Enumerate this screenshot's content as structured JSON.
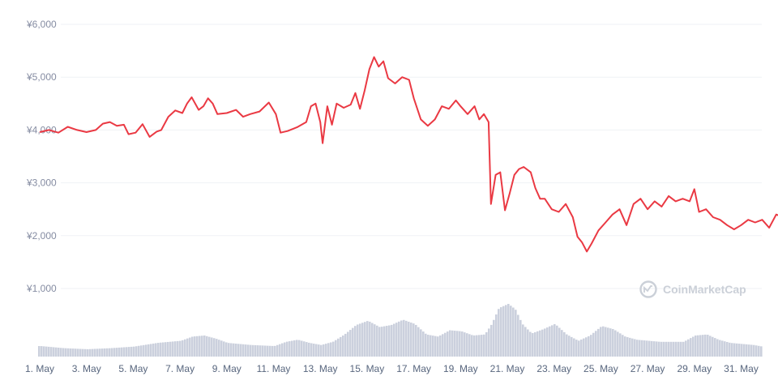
{
  "chart_data": {
    "type": "line",
    "title": "",
    "xlabel": "",
    "ylabel": "",
    "x_tick_labels": [
      "1. May",
      "3. May",
      "5. May",
      "7. May",
      "9. May",
      "11. May",
      "13. May",
      "15. May",
      "17. May",
      "19. May",
      "21. May",
      "23. May",
      "25. May",
      "27. May",
      "29. May",
      "31. May"
    ],
    "y_tick_labels": [
      "¥1,000",
      "¥2,000",
      "¥3,000",
      "¥4,000",
      "¥5,000",
      "¥6,000"
    ],
    "y_ticks": [
      1000,
      2000,
      3000,
      4000,
      5000,
      6000
    ],
    "ylim": [
      0,
      6000
    ],
    "xlim": [
      1,
      32.8
    ],
    "grid": true,
    "watermark": "CoinMarketCap",
    "colors": {
      "price_line": "#ea3943",
      "volume_bars": "#cbd0dd",
      "grid": "#eff2f5"
    },
    "series": [
      {
        "values": [
          [
            1.0,
            3960
          ],
          [
            1.4,
            4000
          ],
          [
            1.8,
            3950
          ],
          [
            2.2,
            4060
          ],
          [
            2.6,
            4000
          ],
          [
            3.0,
            3960
          ],
          [
            3.4,
            4000
          ],
          [
            3.7,
            4120
          ],
          [
            4.0,
            4150
          ],
          [
            4.3,
            4080
          ],
          [
            4.6,
            4100
          ],
          [
            4.8,
            3920
          ],
          [
            5.1,
            3950
          ],
          [
            5.4,
            4110
          ],
          [
            5.7,
            3870
          ],
          [
            6.0,
            3970
          ],
          [
            6.2,
            4000
          ],
          [
            6.5,
            4250
          ],
          [
            6.8,
            4370
          ],
          [
            7.1,
            4320
          ],
          [
            7.3,
            4500
          ],
          [
            7.5,
            4620
          ],
          [
            7.8,
            4380
          ],
          [
            8.0,
            4450
          ],
          [
            8.2,
            4600
          ],
          [
            8.4,
            4500
          ],
          [
            8.6,
            4300
          ],
          [
            9.0,
            4320
          ],
          [
            9.4,
            4380
          ],
          [
            9.7,
            4250
          ],
          [
            10.0,
            4300
          ],
          [
            10.4,
            4350
          ],
          [
            10.8,
            4520
          ],
          [
            11.1,
            4300
          ],
          [
            11.3,
            3950
          ],
          [
            11.6,
            3980
          ],
          [
            12.0,
            4050
          ],
          [
            12.4,
            4150
          ],
          [
            12.6,
            4450
          ],
          [
            12.8,
            4500
          ],
          [
            13.0,
            4150
          ],
          [
            13.1,
            3750
          ],
          [
            13.3,
            4450
          ],
          [
            13.5,
            4100
          ],
          [
            13.7,
            4500
          ],
          [
            14.0,
            4420
          ],
          [
            14.3,
            4480
          ],
          [
            14.5,
            4700
          ],
          [
            14.7,
            4400
          ],
          [
            14.9,
            4750
          ],
          [
            15.1,
            5150
          ],
          [
            15.3,
            5380
          ],
          [
            15.5,
            5200
          ],
          [
            15.7,
            5300
          ],
          [
            15.9,
            4980
          ],
          [
            16.2,
            4880
          ],
          [
            16.5,
            5000
          ],
          [
            16.8,
            4950
          ],
          [
            17.0,
            4600
          ],
          [
            17.3,
            4200
          ],
          [
            17.6,
            4080
          ],
          [
            17.9,
            4200
          ],
          [
            18.2,
            4450
          ],
          [
            18.5,
            4400
          ],
          [
            18.8,
            4560
          ],
          [
            19.0,
            4450
          ],
          [
            19.3,
            4300
          ],
          [
            19.6,
            4450
          ],
          [
            19.8,
            4200
          ],
          [
            20.0,
            4300
          ],
          [
            20.2,
            4150
          ],
          [
            20.3,
            2600
          ],
          [
            20.5,
            3150
          ],
          [
            20.7,
            3200
          ],
          [
            20.9,
            2480
          ],
          [
            21.1,
            2800
          ],
          [
            21.3,
            3150
          ],
          [
            21.5,
            3260
          ],
          [
            21.7,
            3300
          ],
          [
            22.0,
            3200
          ],
          [
            22.2,
            2900
          ],
          [
            22.4,
            2700
          ],
          [
            22.6,
            2700
          ],
          [
            22.9,
            2500
          ],
          [
            23.2,
            2450
          ],
          [
            23.5,
            2600
          ],
          [
            23.8,
            2350
          ],
          [
            24.0,
            1980
          ],
          [
            24.2,
            1870
          ],
          [
            24.4,
            1700
          ],
          [
            24.6,
            1850
          ],
          [
            24.9,
            2100
          ],
          [
            25.2,
            2250
          ],
          [
            25.5,
            2400
          ],
          [
            25.8,
            2500
          ],
          [
            26.1,
            2200
          ],
          [
            26.4,
            2600
          ],
          [
            26.7,
            2700
          ],
          [
            27.0,
            2500
          ],
          [
            27.3,
            2650
          ],
          [
            27.6,
            2550
          ],
          [
            27.9,
            2750
          ],
          [
            28.2,
            2650
          ],
          [
            28.5,
            2700
          ],
          [
            28.8,
            2650
          ],
          [
            29.0,
            2880
          ],
          [
            29.2,
            2450
          ],
          [
            29.5,
            2500
          ],
          [
            29.8,
            2350
          ],
          [
            30.1,
            2300
          ],
          [
            30.4,
            2200
          ],
          [
            30.7,
            2120
          ],
          [
            31.0,
            2200
          ],
          [
            31.3,
            2300
          ],
          [
            31.6,
            2250
          ],
          [
            31.9,
            2300
          ],
          [
            32.2,
            2150
          ],
          [
            32.5,
            2400
          ],
          [
            32.8,
            2350
          ]
        ]
      }
    ],
    "volume_profile": [
      [
        1.0,
        0.2
      ],
      [
        2.0,
        0.16
      ],
      [
        3.0,
        0.14
      ],
      [
        4.0,
        0.16
      ],
      [
        5.0,
        0.19
      ],
      [
        6.0,
        0.26
      ],
      [
        7.0,
        0.3
      ],
      [
        7.5,
        0.38
      ],
      [
        8.0,
        0.4
      ],
      [
        8.5,
        0.34
      ],
      [
        9.0,
        0.26
      ],
      [
        10.0,
        0.22
      ],
      [
        11.0,
        0.2
      ],
      [
        11.5,
        0.28
      ],
      [
        12.0,
        0.32
      ],
      [
        12.5,
        0.26
      ],
      [
        13.0,
        0.22
      ],
      [
        13.5,
        0.28
      ],
      [
        14.0,
        0.42
      ],
      [
        14.5,
        0.6
      ],
      [
        15.0,
        0.68
      ],
      [
        15.5,
        0.56
      ],
      [
        16.0,
        0.6
      ],
      [
        16.5,
        0.7
      ],
      [
        17.0,
        0.62
      ],
      [
        17.5,
        0.42
      ],
      [
        18.0,
        0.38
      ],
      [
        18.5,
        0.5
      ],
      [
        19.0,
        0.48
      ],
      [
        19.5,
        0.4
      ],
      [
        20.0,
        0.42
      ],
      [
        20.3,
        0.62
      ],
      [
        20.6,
        0.92
      ],
      [
        21.0,
        1.0
      ],
      [
        21.3,
        0.9
      ],
      [
        21.6,
        0.62
      ],
      [
        22.0,
        0.44
      ],
      [
        22.5,
        0.52
      ],
      [
        23.0,
        0.62
      ],
      [
        23.5,
        0.42
      ],
      [
        24.0,
        0.3
      ],
      [
        24.5,
        0.4
      ],
      [
        25.0,
        0.58
      ],
      [
        25.5,
        0.52
      ],
      [
        26.0,
        0.38
      ],
      [
        26.5,
        0.32
      ],
      [
        27.0,
        0.3
      ],
      [
        27.5,
        0.28
      ],
      [
        28.0,
        0.28
      ],
      [
        28.5,
        0.28
      ],
      [
        29.0,
        0.4
      ],
      [
        29.5,
        0.42
      ],
      [
        30.0,
        0.32
      ],
      [
        30.5,
        0.26
      ],
      [
        31.0,
        0.24
      ],
      [
        31.5,
        0.22
      ],
      [
        32.0,
        0.18
      ],
      [
        32.5,
        0.16
      ],
      [
        32.8,
        0.18
      ]
    ]
  }
}
